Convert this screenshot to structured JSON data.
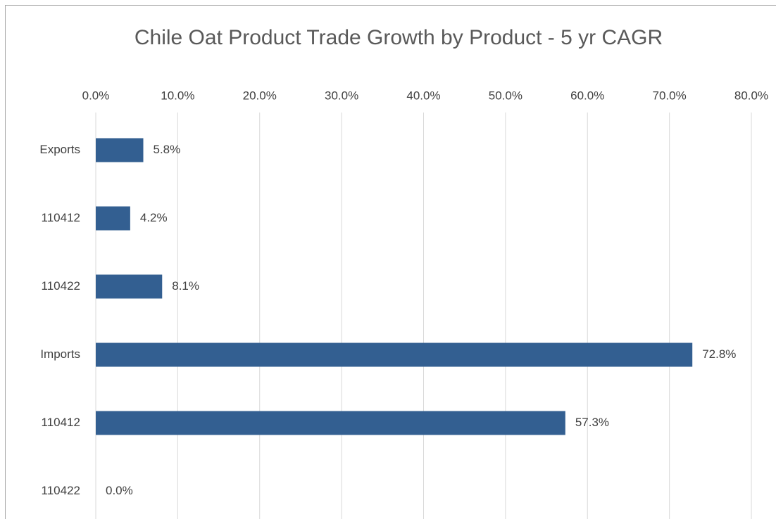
{
  "chart_data": {
    "type": "bar",
    "orientation": "horizontal",
    "title": "Chile Oat Product Trade Growth by Product - 5 yr CAGR",
    "categories": [
      "Exports",
      "110412",
      "110422",
      "Imports",
      "110412",
      "110422"
    ],
    "values": [
      5.8,
      4.2,
      8.1,
      72.8,
      57.3,
      0.0
    ],
    "value_labels": [
      "5.8%",
      "4.2%",
      "8.1%",
      "72.8%",
      "57.3%",
      "0.0%"
    ],
    "color": "#335f91",
    "xlim": [
      0,
      80
    ],
    "xticks": [
      {
        "value": 0,
        "label": "0.0%"
      },
      {
        "value": 10,
        "label": "10.0%"
      },
      {
        "value": 20,
        "label": "20.0%"
      },
      {
        "value": 30,
        "label": "30.0%"
      },
      {
        "value": 40,
        "label": "40.0%"
      },
      {
        "value": 50,
        "label": "50.0%"
      },
      {
        "value": 60,
        "label": "60.0%"
      },
      {
        "value": 70,
        "label": "70.0%"
      },
      {
        "value": 80,
        "label": "80.0%"
      }
    ],
    "grid": true
  }
}
